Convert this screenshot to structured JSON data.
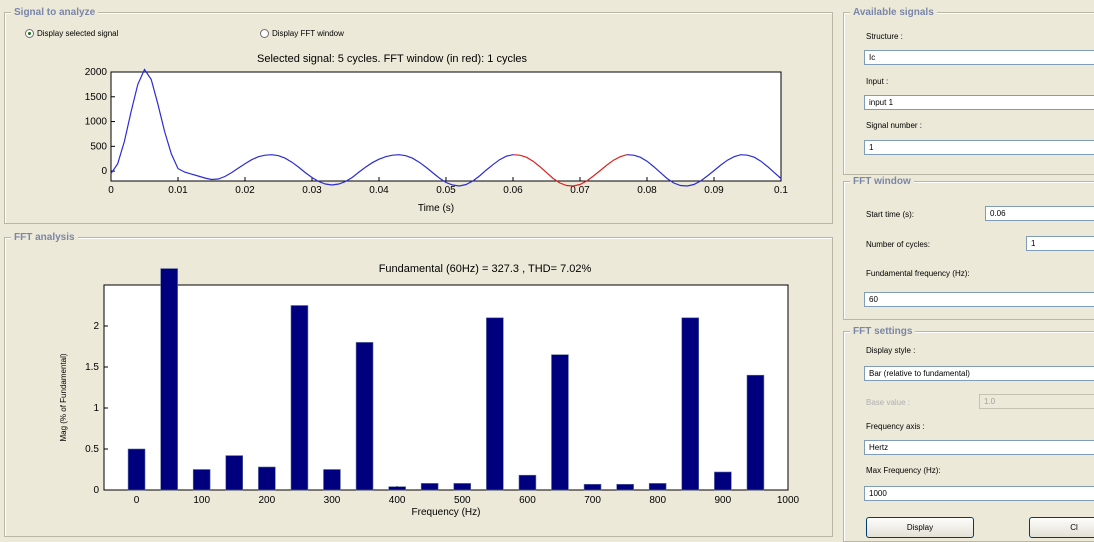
{
  "signal_panel": {
    "title": "Signal to analyze",
    "radio_selected": "Display selected signal",
    "radio_fft": "Display FFT window",
    "plot_title": "Selected signal: 5 cycles. FFT window (in red): 1 cycles",
    "xlabel": "Time (s)",
    "y_ticks": [
      "2000",
      "1500",
      "1000",
      "500",
      "0"
    ],
    "x_ticks": [
      "0",
      "0.01",
      "0.02",
      "0.03",
      "0.04",
      "0.05",
      "0.06",
      "0.07",
      "0.08",
      "0.09",
      "0.1"
    ]
  },
  "fft_panel": {
    "title": "FFT analysis"
  },
  "available_signals": {
    "title": "Available signals",
    "structure_label": "Structure :",
    "structure_value": "Ic",
    "input_label": "Input :",
    "input_value": "input 1",
    "signal_number_label": "Signal number :",
    "signal_number_value": "1"
  },
  "fft_window": {
    "title": "FFT window",
    "start_time_label": "Start time (s):",
    "start_time_value": "0.06",
    "cycles_label": "Number of cycles:",
    "cycles_value": "1",
    "fund_freq_label": "Fundamental frequency (Hz):",
    "fund_freq_value": "60"
  },
  "fft_settings": {
    "title": "FFT settings",
    "display_style_label": "Display style :",
    "display_style_value": "Bar (relative to fundamental)",
    "base_value_label": "Base value :",
    "base_value_value": "1.0",
    "freq_axis_label": "Frequency axis :",
    "freq_axis_value": "Hertz",
    "max_freq_label": "Max Frequency (Hz):",
    "max_freq_value": "1000",
    "display_button": "Display",
    "close_button": "Cl"
  },
  "colors": {
    "signal": "#2b2bd9",
    "window": "#e02020",
    "bars": "#00007f"
  },
  "chart_data": [
    {
      "type": "line",
      "title": "Selected signal: 5 cycles. FFT window (in red): 1 cycles",
      "xlabel": "Time (s)",
      "ylabel": "",
      "xlim": [
        0,
        0.1
      ],
      "ylim": [
        -300,
        2000
      ],
      "x": [
        0,
        0.001,
        0.002,
        0.003,
        0.004,
        0.005,
        0.006,
        0.007,
        0.008,
        0.009,
        0.01,
        0.011,
        0.012,
        0.013,
        0.014,
        0.015,
        0.016,
        0.017,
        0.018,
        0.019,
        0.02,
        0.021,
        0.022,
        0.023,
        0.024,
        0.025,
        0.026,
        0.027,
        0.028,
        0.029,
        0.03,
        0.031,
        0.032,
        0.033,
        0.034,
        0.035,
        0.036,
        0.037,
        0.038,
        0.039,
        0.04,
        0.041,
        0.042,
        0.043,
        0.044,
        0.045,
        0.046,
        0.047,
        0.048,
        0.049,
        0.05,
        0.051,
        0.052,
        0.053,
        0.054,
        0.055,
        0.056,
        0.057,
        0.058,
        0.059,
        0.06,
        0.061,
        0.062,
        0.063,
        0.064,
        0.065,
        0.066,
        0.067,
        0.068,
        0.069,
        0.07,
        0.071,
        0.072,
        0.073,
        0.074,
        0.075,
        0.076,
        0.077,
        0.078,
        0.079,
        0.08,
        0.081,
        0.082,
        0.083,
        0.084,
        0.085,
        0.086,
        0.087,
        0.088,
        0.089,
        0.09,
        0.091,
        0.092,
        0.093,
        0.094,
        0.095,
        0.096,
        0.097,
        0.098,
        0.099,
        0.1
      ],
      "series": [
        {
          "values": [
            -50,
            150,
            600,
            1200,
            1750,
            2050,
            1850,
            1350,
            800,
            350,
            50,
            -20,
            -60,
            -100,
            -140,
            -170,
            -160,
            -110,
            -30,
            60,
            150,
            230,
            290,
            320,
            330,
            310,
            260,
            180,
            80,
            -30,
            -130,
            -210,
            -260,
            -280,
            -260,
            -210,
            -130,
            -20,
            80,
            170,
            240,
            290,
            320,
            330,
            310,
            260,
            180,
            80,
            -30,
            -140,
            -230,
            -280,
            -300,
            -270,
            -200,
            -100,
            20,
            130,
            230,
            300,
            330,
            320,
            280,
            200,
            90,
            -30,
            -150,
            -240,
            -290,
            -300,
            -270,
            -200,
            -100,
            10,
            120,
            220,
            290,
            330,
            320,
            280,
            200,
            90,
            -30,
            -150,
            -240,
            -290,
            -300,
            -270,
            -200,
            -100,
            10,
            120,
            220,
            290,
            330,
            320,
            280,
            200,
            90,
            -30,
            -150
          ]
        }
      ],
      "highlight_window_x": [
        0.06,
        0.0767
      ]
    },
    {
      "type": "bar",
      "title": "Fundamental (60Hz) = 327.3 , THD= 7.02%",
      "xlabel": "Frequency (Hz)",
      "ylabel": "Mag (% of Fundamental)",
      "xlim": [
        -50,
        1000
      ],
      "ylim": [
        0,
        2.5
      ],
      "x_ticks": [
        "0",
        "100",
        "200",
        "300",
        "400",
        "500",
        "600",
        "700",
        "800",
        "900",
        "1000"
      ],
      "y_ticks": [
        "0",
        "0.5",
        "1",
        "1.5",
        "2"
      ],
      "x": [
        0,
        50,
        100,
        150,
        200,
        250,
        300,
        350,
        400,
        450,
        500,
        550,
        600,
        650,
        700,
        750,
        800,
        850,
        900,
        950
      ],
      "values": [
        0.5,
        2.7,
        0.25,
        0.42,
        0.28,
        2.25,
        0.25,
        1.8,
        0.04,
        0.08,
        0.08,
        2.1,
        0.18,
        1.65,
        0.07,
        0.07,
        0.08,
        2.1,
        0.22,
        1.4
      ]
    }
  ]
}
